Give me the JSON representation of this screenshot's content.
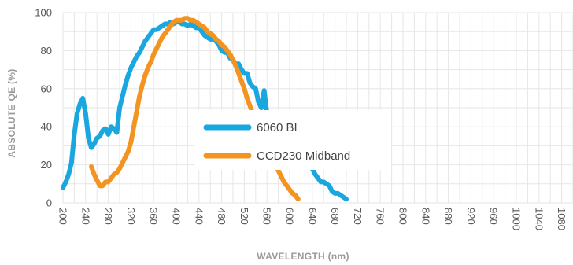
{
  "chart_data": {
    "type": "line",
    "title": "",
    "xlabel": "WAVELENGTH (nm)",
    "ylabel": "ABSOLUTE QE (%)",
    "xlim": [
      200,
      1100
    ],
    "ylim": [
      0,
      100
    ],
    "x_ticks": [
      200,
      240,
      280,
      320,
      360,
      400,
      440,
      480,
      520,
      560,
      600,
      640,
      680,
      720,
      760,
      800,
      840,
      880,
      920,
      960,
      1000,
      1040,
      1080
    ],
    "y_ticks": [
      0,
      20,
      40,
      60,
      80,
      100
    ],
    "grid": true,
    "legend_position": "center",
    "series": [
      {
        "name": "6060 BI",
        "color": "#1aa7e0",
        "points": [
          [
            200,
            8
          ],
          [
            205,
            11
          ],
          [
            210,
            15
          ],
          [
            215,
            21
          ],
          [
            220,
            36
          ],
          [
            225,
            47
          ],
          [
            230,
            52
          ],
          [
            235,
            55
          ],
          [
            240,
            47
          ],
          [
            245,
            34
          ],
          [
            250,
            29
          ],
          [
            255,
            31
          ],
          [
            260,
            34
          ],
          [
            265,
            35
          ],
          [
            270,
            38
          ],
          [
            275,
            39
          ],
          [
            280,
            36
          ],
          [
            285,
            40
          ],
          [
            290,
            39
          ],
          [
            295,
            37
          ],
          [
            300,
            50
          ],
          [
            305,
            56
          ],
          [
            310,
            62
          ],
          [
            315,
            67
          ],
          [
            320,
            71
          ],
          [
            325,
            74
          ],
          [
            330,
            77
          ],
          [
            335,
            79
          ],
          [
            340,
            82
          ],
          [
            345,
            85
          ],
          [
            350,
            87
          ],
          [
            355,
            89
          ],
          [
            360,
            91
          ],
          [
            365,
            91
          ],
          [
            370,
            92
          ],
          [
            375,
            93
          ],
          [
            380,
            94
          ],
          [
            385,
            94
          ],
          [
            390,
            95
          ],
          [
            395,
            94
          ],
          [
            400,
            95
          ],
          [
            405,
            95
          ],
          [
            410,
            94
          ],
          [
            415,
            94
          ],
          [
            420,
            93
          ],
          [
            425,
            94
          ],
          [
            430,
            93
          ],
          [
            435,
            92
          ],
          [
            440,
            92
          ],
          [
            445,
            90
          ],
          [
            450,
            88
          ],
          [
            455,
            87
          ],
          [
            460,
            86
          ],
          [
            465,
            86
          ],
          [
            470,
            85
          ],
          [
            475,
            83
          ],
          [
            480,
            80
          ],
          [
            485,
            79
          ],
          [
            490,
            79
          ],
          [
            495,
            76
          ],
          [
            500,
            75
          ],
          [
            505,
            73
          ],
          [
            510,
            73
          ],
          [
            515,
            70
          ],
          [
            520,
            68
          ],
          [
            525,
            68
          ],
          [
            530,
            63
          ],
          [
            535,
            61
          ],
          [
            540,
            60
          ],
          [
            545,
            53
          ],
          [
            550,
            50
          ],
          [
            555,
            59
          ],
          [
            560,
            47
          ],
          [
            565,
            46
          ],
          [
            570,
            37
          ],
          [
            575,
            36
          ],
          [
            580,
            34
          ],
          [
            585,
            32
          ],
          [
            590,
            31
          ],
          [
            595,
            29
          ],
          [
            600,
            28
          ],
          [
            605,
            26
          ],
          [
            610,
            24
          ],
          [
            615,
            22
          ],
          [
            620,
            21
          ],
          [
            625,
            20
          ],
          [
            630,
            23
          ],
          [
            635,
            23
          ],
          [
            640,
            18
          ],
          [
            645,
            15
          ],
          [
            650,
            13
          ],
          [
            655,
            11
          ],
          [
            660,
            11
          ],
          [
            665,
            10
          ],
          [
            670,
            9
          ],
          [
            675,
            6
          ],
          [
            680,
            5
          ],
          [
            685,
            5
          ],
          [
            690,
            4
          ],
          [
            695,
            3
          ],
          [
            700,
            2
          ]
        ]
      },
      {
        "name": "CCD230 Midband",
        "color": "#f49420",
        "points": [
          [
            250,
            19
          ],
          [
            255,
            15
          ],
          [
            260,
            12
          ],
          [
            265,
            9
          ],
          [
            270,
            9
          ],
          [
            275,
            11
          ],
          [
            280,
            11
          ],
          [
            285,
            13
          ],
          [
            290,
            15
          ],
          [
            295,
            16
          ],
          [
            300,
            18
          ],
          [
            305,
            21
          ],
          [
            310,
            24
          ],
          [
            315,
            27
          ],
          [
            320,
            32
          ],
          [
            325,
            40
          ],
          [
            330,
            48
          ],
          [
            335,
            56
          ],
          [
            340,
            62
          ],
          [
            345,
            67
          ],
          [
            350,
            71
          ],
          [
            355,
            74
          ],
          [
            360,
            78
          ],
          [
            365,
            81
          ],
          [
            370,
            84
          ],
          [
            375,
            87
          ],
          [
            380,
            89
          ],
          [
            385,
            91
          ],
          [
            390,
            93
          ],
          [
            395,
            95
          ],
          [
            400,
            96
          ],
          [
            405,
            96
          ],
          [
            410,
            96
          ],
          [
            415,
            97
          ],
          [
            420,
            97
          ],
          [
            425,
            96
          ],
          [
            430,
            96
          ],
          [
            435,
            95
          ],
          [
            440,
            94
          ],
          [
            445,
            93
          ],
          [
            450,
            92
          ],
          [
            455,
            90
          ],
          [
            460,
            89
          ],
          [
            465,
            88
          ],
          [
            470,
            86
          ],
          [
            475,
            85
          ],
          [
            480,
            83
          ],
          [
            485,
            82
          ],
          [
            490,
            80
          ],
          [
            495,
            78
          ],
          [
            500,
            75
          ],
          [
            505,
            72
          ],
          [
            510,
            68
          ],
          [
            515,
            64
          ],
          [
            520,
            60
          ],
          [
            525,
            55
          ],
          [
            530,
            51
          ],
          [
            535,
            47
          ],
          [
            540,
            43
          ],
          [
            545,
            39
          ],
          [
            550,
            35
          ],
          [
            555,
            32
          ],
          [
            560,
            29
          ],
          [
            565,
            26
          ],
          [
            570,
            23
          ],
          [
            575,
            20
          ],
          [
            580,
            17
          ],
          [
            585,
            14
          ],
          [
            590,
            11
          ],
          [
            595,
            9
          ],
          [
            600,
            7
          ],
          [
            605,
            5
          ],
          [
            610,
            4
          ],
          [
            615,
            2
          ]
        ]
      }
    ]
  }
}
